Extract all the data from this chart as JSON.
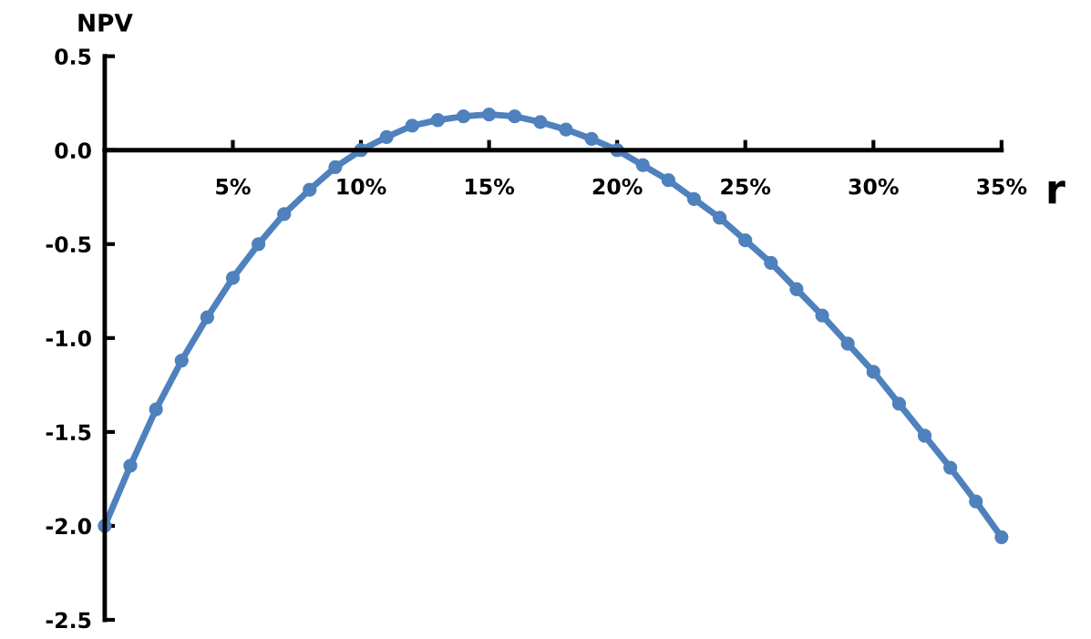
{
  "chart_data": {
    "type": "line",
    "xlabel": "r",
    "ylabel": "NPV",
    "x": [
      0,
      1,
      2,
      3,
      4,
      5,
      6,
      7,
      8,
      9,
      10,
      11,
      12,
      13,
      14,
      15,
      16,
      17,
      18,
      19,
      20,
      21,
      22,
      23,
      24,
      25,
      26,
      27,
      28,
      29,
      30,
      31,
      32,
      33,
      34,
      35
    ],
    "series": [
      {
        "color": "#4f81bd",
        "values": [
          -2.0,
          -1.68,
          -1.38,
          -1.12,
          -0.89,
          -0.68,
          -0.5,
          -0.34,
          -0.21,
          -0.09,
          0.0,
          0.07,
          0.13,
          0.16,
          0.18,
          0.19,
          0.18,
          0.15,
          0.11,
          0.06,
          0.0,
          -0.08,
          -0.16,
          -0.26,
          -0.36,
          -0.48,
          -0.6,
          -0.74,
          -0.88,
          -1.03,
          -1.18,
          -1.35,
          -1.52,
          -1.69,
          -1.87,
          -2.06
        ]
      }
    ],
    "xlim": [
      0,
      35
    ],
    "ylim": [
      -2.5,
      0.5
    ],
    "xticks": [
      {
        "value": 5,
        "label": "5%"
      },
      {
        "value": 10,
        "label": "10%"
      },
      {
        "value": 15,
        "label": "15%"
      },
      {
        "value": 20,
        "label": "20%"
      },
      {
        "value": 25,
        "label": "25%"
      },
      {
        "value": 30,
        "label": "30%"
      },
      {
        "value": 35,
        "label": "35%"
      }
    ],
    "yticks": [
      {
        "value": -2.5,
        "label": "-2.5"
      },
      {
        "value": -2.0,
        "label": "-2.0"
      },
      {
        "value": -1.5,
        "label": "-1.5"
      },
      {
        "value": -1.0,
        "label": "-1.0"
      },
      {
        "value": -0.5,
        "label": "-0.5"
      },
      {
        "value": 0.0,
        "label": "0.0"
      },
      {
        "value": 0.5,
        "label": "0.5"
      }
    ],
    "marker": "circle",
    "line_style": "solid",
    "grid": false,
    "legend": false
  }
}
